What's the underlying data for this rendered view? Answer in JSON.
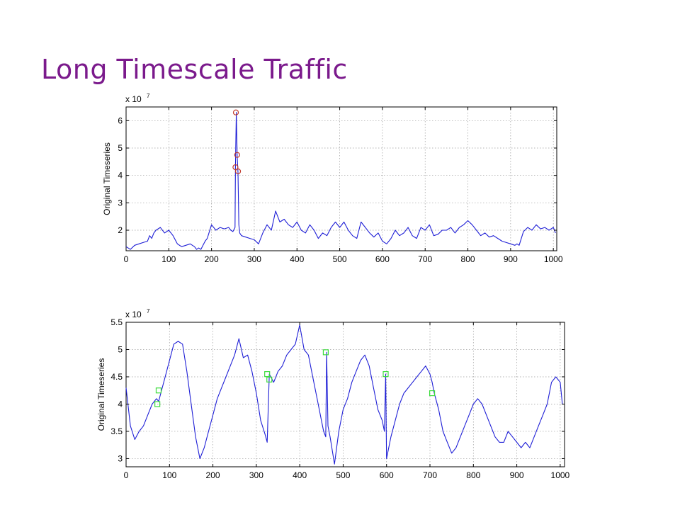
{
  "slide": {
    "title": "Long Timescale Traffic"
  },
  "chart_data": [
    {
      "type": "line",
      "title": "",
      "xlabel": "",
      "ylabel": "Original Timeseries",
      "y_multiplier": "x 10",
      "y_multiplier_exponent": "7",
      "xlim": [
        0,
        1008
      ],
      "ylim": [
        1.25,
        6.5
      ],
      "x_ticks": [
        0,
        100,
        200,
        300,
        400,
        500,
        600,
        700,
        800,
        900,
        1000
      ],
      "y_ticks": [
        2,
        3,
        4,
        5,
        6
      ],
      "grid": true,
      "line_color": "#1f1fd6",
      "marker_color": "#c0392b",
      "series": [
        {
          "x": [
            0,
            10,
            20,
            30,
            40,
            50,
            55,
            60,
            65,
            70,
            80,
            90,
            100,
            110,
            120,
            130,
            140,
            150,
            160,
            165,
            170,
            175,
            180,
            185,
            190,
            195,
            200,
            205,
            210,
            220,
            230,
            240,
            245,
            250,
            255,
            256,
            258,
            260,
            262,
            264,
            266,
            270,
            280,
            290,
            300,
            310,
            320,
            330,
            340,
            350,
            360,
            370,
            380,
            390,
            400,
            410,
            420,
            430,
            440,
            450,
            460,
            470,
            480,
            490,
            500,
            510,
            520,
            530,
            540,
            550,
            560,
            570,
            580,
            590,
            600,
            610,
            620,
            630,
            640,
            650,
            660,
            670,
            680,
            690,
            700,
            710,
            720,
            730,
            740,
            750,
            760,
            770,
            780,
            790,
            800,
            810,
            820,
            830,
            840,
            850,
            860,
            870,
            880,
            890,
            900,
            910,
            915,
            920,
            930,
            940,
            950,
            960,
            970,
            980,
            990,
            1000,
            1005
          ],
          "y": [
            1.4,
            1.3,
            1.45,
            1.5,
            1.55,
            1.6,
            1.8,
            1.7,
            1.9,
            2.0,
            2.1,
            1.9,
            2.0,
            1.8,
            1.5,
            1.4,
            1.45,
            1.5,
            1.4,
            1.3,
            1.35,
            1.3,
            1.45,
            1.6,
            1.7,
            1.95,
            2.2,
            2.1,
            2.0,
            2.1,
            2.05,
            2.1,
            2.0,
            1.95,
            2.1,
            4.3,
            6.3,
            4.75,
            4.1,
            2.2,
            1.9,
            1.8,
            1.75,
            1.7,
            1.65,
            1.5,
            1.9,
            2.2,
            2.0,
            2.7,
            2.3,
            2.4,
            2.2,
            2.1,
            2.3,
            2.0,
            1.9,
            2.2,
            2.0,
            1.7,
            1.9,
            1.8,
            2.1,
            2.3,
            2.1,
            2.3,
            2.0,
            1.8,
            1.7,
            2.3,
            2.1,
            1.9,
            1.75,
            1.9,
            1.6,
            1.5,
            1.7,
            2.0,
            1.8,
            1.9,
            2.1,
            1.8,
            1.7,
            2.1,
            2.0,
            2.2,
            1.8,
            1.85,
            2.0,
            2.0,
            2.1,
            1.9,
            2.1,
            2.2,
            2.35,
            2.2,
            2.0,
            1.8,
            1.9,
            1.75,
            1.8,
            1.7,
            1.6,
            1.55,
            1.5,
            1.45,
            1.5,
            1.45,
            1.95,
            2.1,
            2.0,
            2.2,
            2.05,
            2.1,
            2.0,
            2.1,
            1.9
          ]
        }
      ],
      "markers": {
        "shape": "circle",
        "x": [
          257,
          260,
          256,
          262
        ],
        "y": [
          6.3,
          4.75,
          4.3,
          4.15
        ]
      }
    },
    {
      "type": "line",
      "title": "",
      "xlabel": "",
      "ylabel": "Original Timeseries",
      "y_multiplier": "x 10",
      "y_multiplier_exponent": "7",
      "xlim": [
        0,
        1010
      ],
      "ylim": [
        2.85,
        5.5
      ],
      "x_ticks": [
        0,
        100,
        200,
        300,
        400,
        500,
        600,
        700,
        800,
        900,
        1000
      ],
      "y_ticks": [
        3,
        3.5,
        4,
        4.5,
        5,
        5.5
      ],
      "grid": true,
      "line_color": "#1f1fd6",
      "marker_color": "#3ddc3d",
      "series": [
        {
          "x": [
            0,
            10,
            20,
            30,
            40,
            50,
            60,
            70,
            75,
            80,
            90,
            100,
            110,
            120,
            130,
            140,
            150,
            160,
            170,
            180,
            190,
            200,
            210,
            220,
            230,
            240,
            250,
            260,
            270,
            280,
            290,
            300,
            310,
            320,
            325,
            330,
            340,
            350,
            360,
            370,
            380,
            390,
            400,
            410,
            420,
            430,
            440,
            450,
            455,
            460,
            462,
            465,
            470,
            480,
            490,
            500,
            510,
            520,
            530,
            540,
            550,
            560,
            570,
            580,
            590,
            595,
            598,
            600,
            610,
            620,
            630,
            640,
            650,
            660,
            670,
            680,
            690,
            700,
            705,
            710,
            720,
            730,
            740,
            750,
            760,
            770,
            780,
            790,
            800,
            810,
            820,
            830,
            840,
            850,
            860,
            870,
            880,
            890,
            900,
            910,
            920,
            930,
            940,
            950,
            960,
            970,
            980,
            990,
            1000,
            1005
          ],
          "y": [
            4.3,
            3.6,
            3.35,
            3.5,
            3.6,
            3.8,
            4.0,
            4.1,
            4.05,
            4.2,
            4.5,
            4.8,
            5.1,
            5.15,
            5.1,
            4.6,
            4.0,
            3.4,
            3.0,
            3.2,
            3.5,
            3.8,
            4.1,
            4.3,
            4.5,
            4.7,
            4.9,
            5.2,
            4.85,
            4.9,
            4.6,
            4.2,
            3.7,
            3.45,
            3.3,
            4.55,
            4.4,
            4.6,
            4.7,
            4.9,
            5.0,
            5.1,
            5.45,
            5.0,
            4.9,
            4.5,
            4.1,
            3.7,
            3.5,
            3.4,
            4.95,
            3.6,
            3.4,
            2.9,
            3.5,
            3.9,
            4.1,
            4.4,
            4.6,
            4.8,
            4.9,
            4.7,
            4.3,
            3.9,
            3.7,
            3.5,
            4.55,
            3.0,
            3.4,
            3.7,
            4.0,
            4.2,
            4.3,
            4.4,
            4.5,
            4.6,
            4.7,
            4.55,
            4.4,
            4.2,
            3.9,
            3.5,
            3.3,
            3.1,
            3.2,
            3.4,
            3.6,
            3.8,
            4.0,
            4.1,
            4.0,
            3.8,
            3.6,
            3.4,
            3.3,
            3.3,
            3.5,
            3.4,
            3.3,
            3.2,
            3.3,
            3.2,
            3.4,
            3.6,
            3.8,
            4.0,
            4.4,
            4.5,
            4.4,
            4.0
          ]
        }
      ],
      "markers": {
        "shape": "square",
        "x": [
          75,
          72,
          325,
          330,
          460,
          598,
          705
        ],
        "y": [
          4.25,
          4.0,
          4.55,
          4.45,
          4.95,
          4.55,
          4.2
        ]
      }
    }
  ]
}
